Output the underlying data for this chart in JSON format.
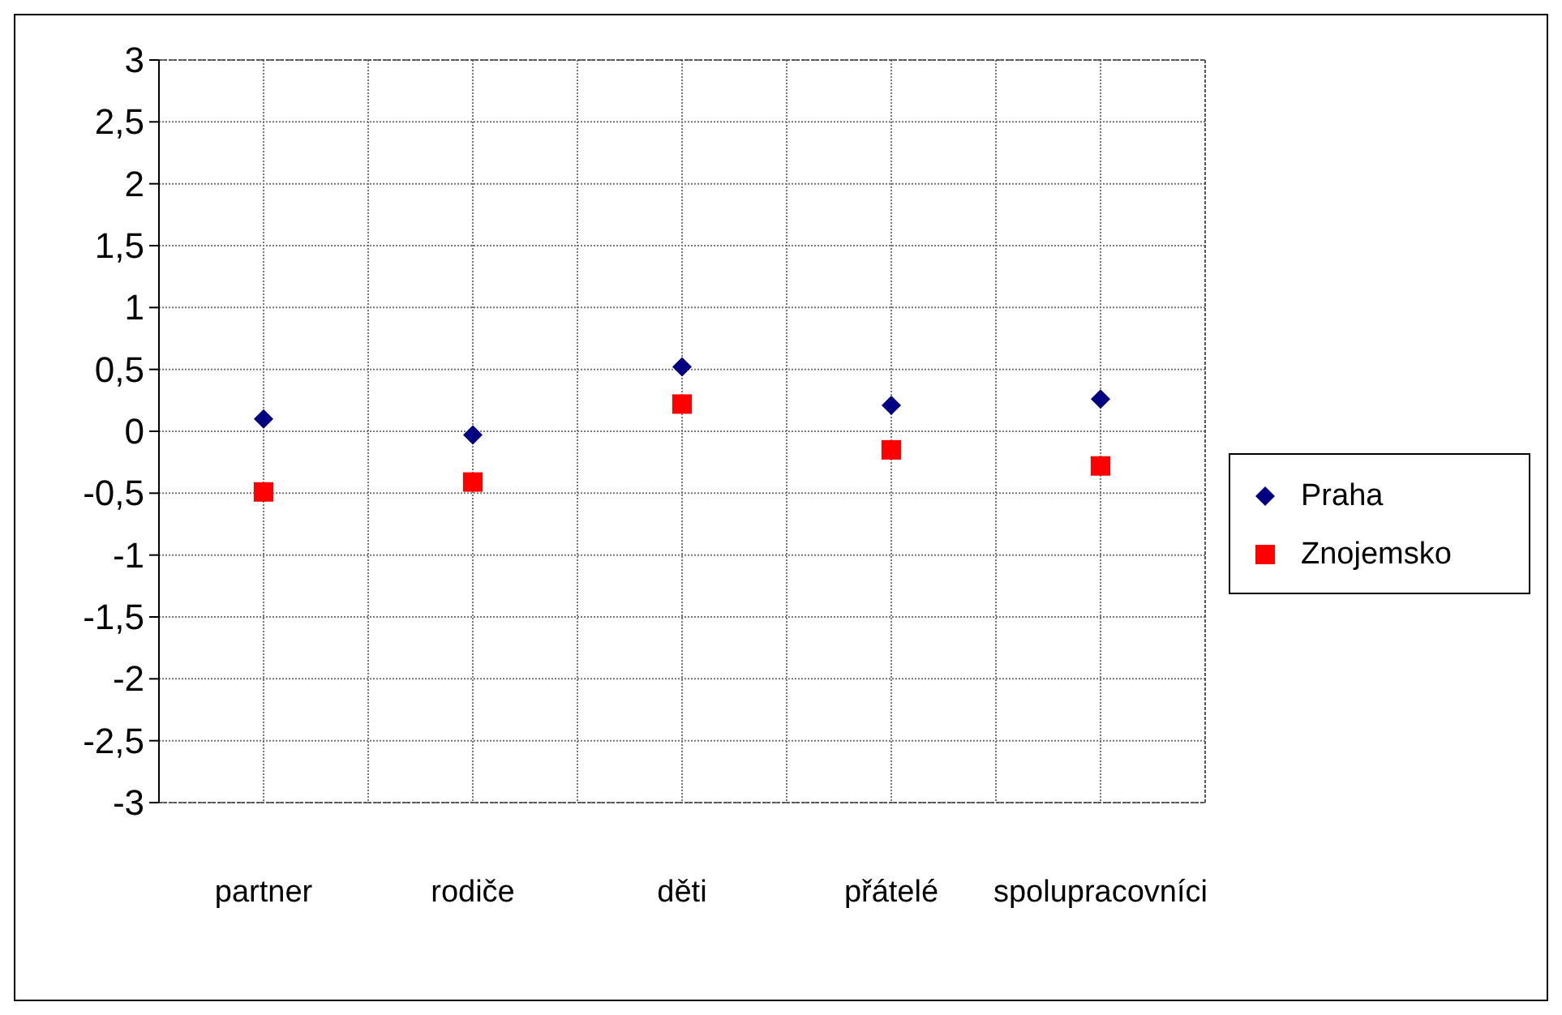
{
  "chart_data": {
    "type": "scatter",
    "categories": [
      "partner",
      "rodiče",
      "děti",
      "přátelé",
      "spolupracovníci"
    ],
    "series": [
      {
        "name": "Praha",
        "color": "#000080",
        "marker": "diamond",
        "values": [
          0.1,
          -0.03,
          0.52,
          0.21,
          0.26
        ]
      },
      {
        "name": "Znojemsko",
        "color": "#ff0000",
        "marker": "square",
        "values": [
          -0.49,
          -0.41,
          0.22,
          -0.15,
          -0.28
        ]
      }
    ],
    "ylim": [
      -3,
      3
    ],
    "yticks": [
      {
        "value": 3,
        "label": "3"
      },
      {
        "value": 2.5,
        "label": "2,5"
      },
      {
        "value": 2,
        "label": "2"
      },
      {
        "value": 1.5,
        "label": "1,5"
      },
      {
        "value": 1,
        "label": "1"
      },
      {
        "value": 0.5,
        "label": "0,5"
      },
      {
        "value": 0,
        "label": "0"
      },
      {
        "value": -0.5,
        "label": "-0,5"
      },
      {
        "value": -1,
        "label": "-1"
      },
      {
        "value": -1.5,
        "label": "-1,5"
      },
      {
        "value": -2,
        "label": "-2"
      },
      {
        "value": -2.5,
        "label": "-2,5"
      },
      {
        "value": -3,
        "label": "-3"
      }
    ],
    "grid": true,
    "legend": "right"
  }
}
